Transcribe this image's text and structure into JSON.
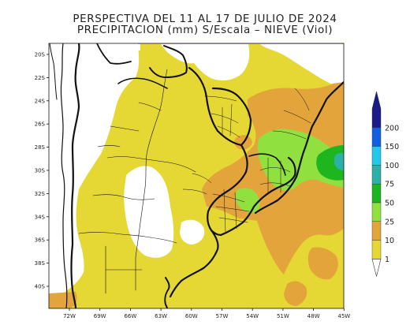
{
  "map": {
    "title": "PERSPECTIVA DEL 11 AL 17 DE JULIO DE 2024",
    "subtitle": "PRECIPITACION (mm) S/Escala – NIEVE (Viol)",
    "lat_ticks": [
      "20S",
      "22S",
      "24S",
      "26S",
      "28S",
      "30S",
      "32S",
      "34S",
      "36S",
      "38S",
      "40S"
    ],
    "lon_ticks": [
      "72W",
      "69W",
      "66W",
      "63W",
      "60W",
      "57W",
      "54W",
      "51W",
      "48W",
      "45W"
    ],
    "legend": {
      "levels": [
        "1",
        "10",
        "25",
        "50",
        "75",
        "100",
        "150",
        "200"
      ],
      "colors": [
        "#e6d834",
        "#e3a43c",
        "#90e040",
        "#1fb51f",
        "#2db0a8",
        "#24c8e8",
        "#1060e0",
        "#1a1a8a"
      ],
      "top_color": "#1a1a8a"
    }
  }
}
